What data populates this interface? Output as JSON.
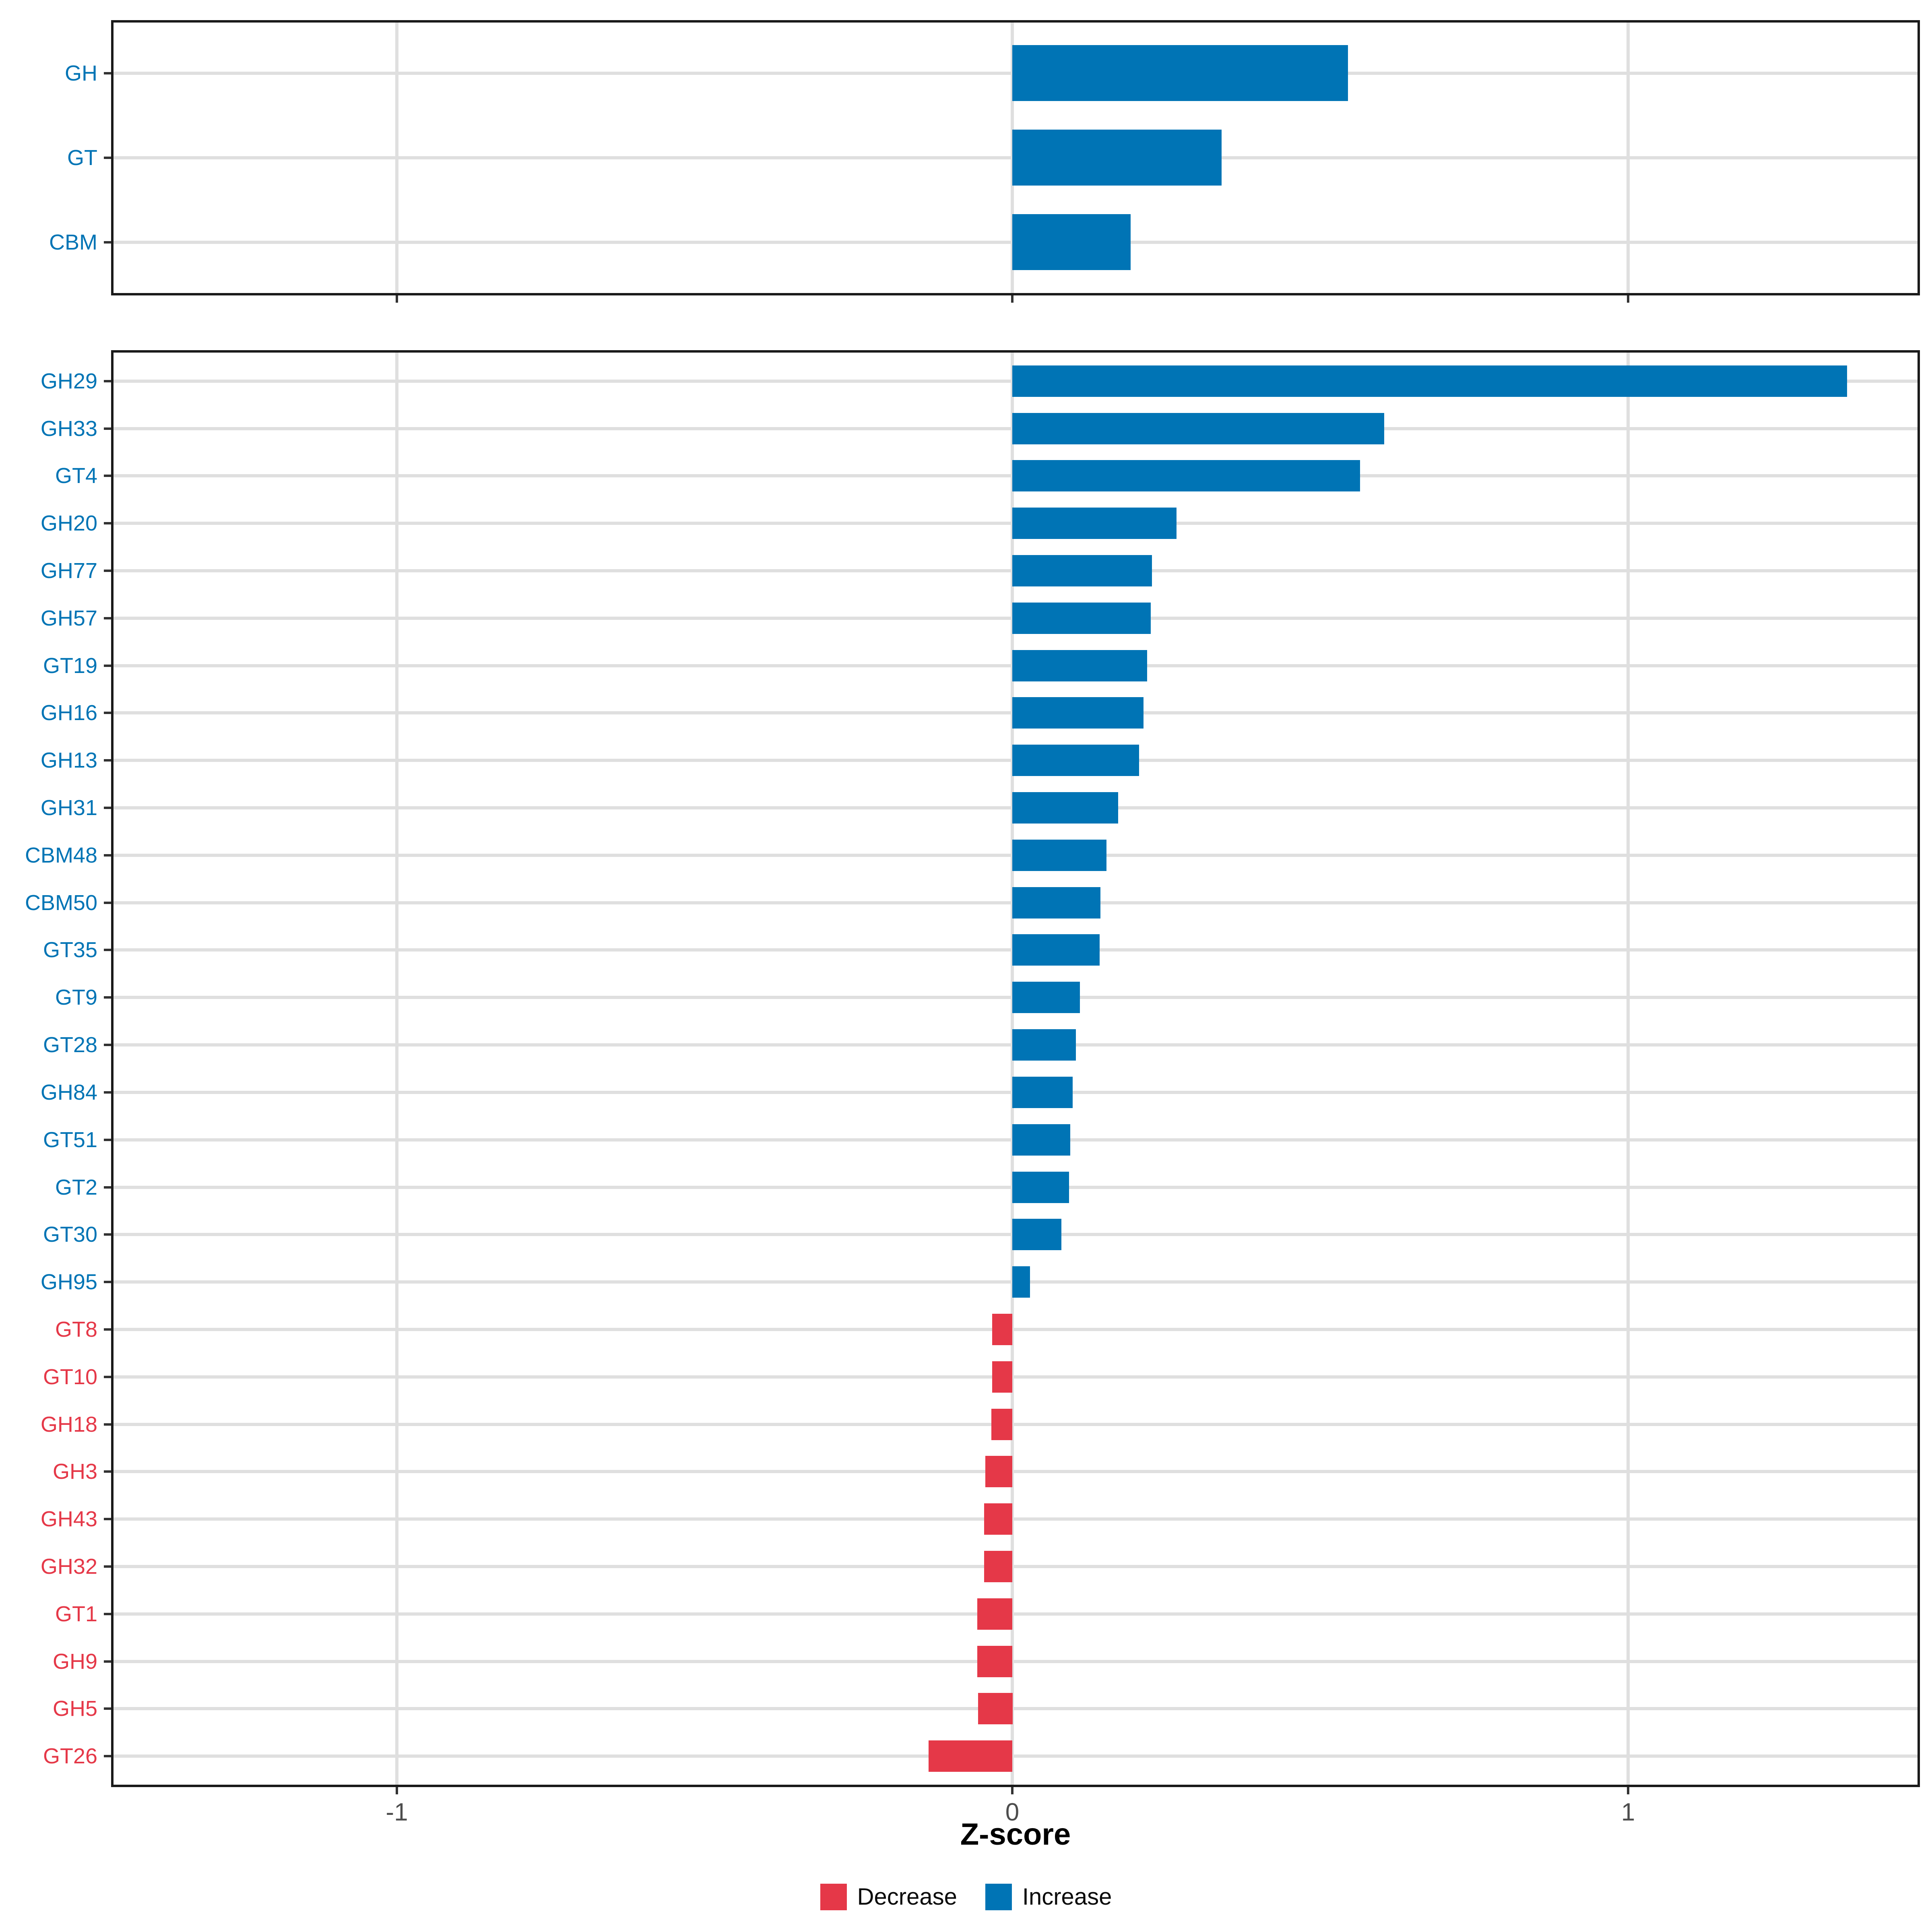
{
  "axis": {
    "label": "Z-score",
    "tick_labels": [
      "-1",
      "0",
      "1"
    ],
    "tick_values": [
      -1,
      0,
      1
    ],
    "domain": [
      -1.46,
      1.47
    ]
  },
  "legend": {
    "items": [
      {
        "label": "Decrease",
        "color": "#e53848"
      },
      {
        "label": "Increase",
        "color": "#0074b5"
      }
    ]
  },
  "colors": {
    "increase": "#0074b5",
    "decrease": "#e53848",
    "grid": "#dfdfdf",
    "tick": "#333333",
    "tick_label": "#4d4d4d",
    "panel_border": "#1a1a1a"
  },
  "chart_data": [
    {
      "type": "bar",
      "orientation": "horizontal",
      "panel": "top",
      "xlabel": "Z-score",
      "xlim": [
        -1.46,
        1.47
      ],
      "grid": "on",
      "categories": [
        "GH",
        "GT",
        "CBM"
      ],
      "values": [
        0.545,
        0.34,
        0.192
      ]
    },
    {
      "type": "bar",
      "orientation": "horizontal",
      "panel": "bottom",
      "xlabel": "Z-score",
      "xlim": [
        -1.46,
        1.47
      ],
      "grid": "on",
      "legend_position": "bottom",
      "categories": [
        "GH29",
        "GH33",
        "GT4",
        "GH20",
        "GH77",
        "GH57",
        "GT19",
        "GH16",
        "GH13",
        "GH31",
        "CBM48",
        "CBM50",
        "GT35",
        "GT9",
        "GT28",
        "GH84",
        "GT51",
        "GT2",
        "GT30",
        "GH95",
        "GT8",
        "GT10",
        "GH18",
        "GH3",
        "GH43",
        "GH32",
        "GT1",
        "GH9",
        "GH5",
        "GT26"
      ],
      "values": [
        1.356,
        0.604,
        0.565,
        0.267,
        0.227,
        0.225,
        0.219,
        0.213,
        0.206,
        0.172,
        0.153,
        0.143,
        0.142,
        0.11,
        0.103,
        0.098,
        0.094,
        0.092,
        0.08,
        0.029,
        -0.033,
        -0.033,
        -0.034,
        -0.044,
        -0.046,
        -0.046,
        -0.057,
        -0.057,
        -0.056,
        -0.136
      ]
    }
  ]
}
